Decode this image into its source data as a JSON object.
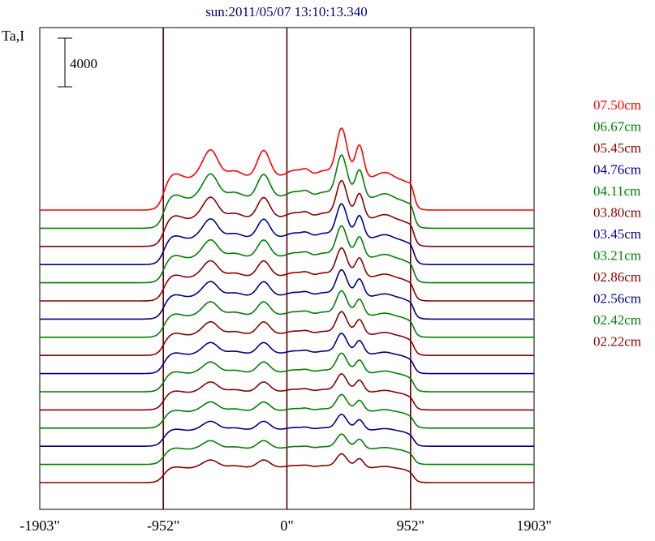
{
  "chart_data": {
    "type": "line",
    "title": "sun:2011/05/07 13:10:13.340",
    "ylabel": "Ta,I",
    "scale_bar_label": "4000",
    "x_ticks": [
      {
        "value": -1903,
        "label": "-1903\""
      },
      {
        "value": -952,
        "label": "-952\""
      },
      {
        "value": 0,
        "label": "0\""
      },
      {
        "value": 952,
        "label": "952\""
      },
      {
        "value": 1903,
        "label": "1903\""
      }
    ],
    "vlines": [
      -952,
      0,
      952
    ],
    "xlim": [
      -1903,
      1903
    ],
    "legend_position": "right",
    "series": [
      {
        "name": "07.50cm",
        "color": "#ff0000",
        "baseline_row": 0,
        "amplitude": 1.0
      },
      {
        "name": "06.67cm",
        "color": "#008000",
        "baseline_row": 1,
        "amplitude": 0.92
      },
      {
        "name": "05.45cm",
        "color": "#8b0000",
        "baseline_row": 2,
        "amplitude": 0.85
      },
      {
        "name": "04.76cm",
        "color": "#00008b",
        "baseline_row": 3,
        "amplitude": 0.8
      },
      {
        "name": "04.11cm",
        "color": "#008000",
        "baseline_row": 4,
        "amplitude": 0.76
      },
      {
        "name": "03.80cm",
        "color": "#8b0000",
        "baseline_row": 5,
        "amplitude": 0.72
      },
      {
        "name": "03.45cm",
        "color": "#00008b",
        "baseline_row": 6,
        "amplitude": 0.68
      },
      {
        "name": "03.21cm",
        "color": "#008000",
        "baseline_row": 7,
        "amplitude": 0.65
      },
      {
        "name": "02.86cm",
        "color": "#8b0000",
        "baseline_row": 8,
        "amplitude": 0.62
      },
      {
        "name": "02.56cm",
        "color": "#00008b",
        "baseline_row": 9,
        "amplitude": 0.58
      },
      {
        "name": "02.42cm",
        "color": "#008000",
        "baseline_row": 10,
        "amplitude": 0.56
      },
      {
        "name": "02.22cm",
        "color": "#8b0000",
        "baseline_row": 11,
        "amplitude": 0.53
      },
      {
        "name": "",
        "color": "#008000",
        "baseline_row": 12,
        "amplitude": 0.5
      },
      {
        "name": "",
        "color": "#00008b",
        "baseline_row": 13,
        "amplitude": 0.48
      },
      {
        "name": "",
        "color": "#008000",
        "baseline_row": 14,
        "amplitude": 0.46
      },
      {
        "name": "",
        "color": "#8b0000",
        "baseline_row": 15,
        "amplitude": 0.44
      }
    ]
  }
}
